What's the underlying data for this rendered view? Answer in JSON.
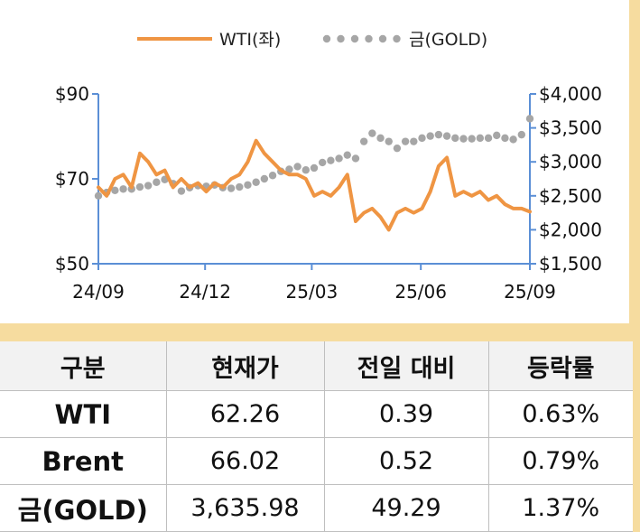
{
  "chart_data": {
    "type": "line",
    "x_tick_labels": [
      "24/09",
      "24/12",
      "25/03",
      "25/06",
      "25/09"
    ],
    "y_left_ticks": [
      "$50",
      "$70",
      "$90"
    ],
    "y_left_lim": [
      50,
      90
    ],
    "y_right_ticks": [
      "$1,500",
      "$2,000",
      "$2,500",
      "$3,000",
      "$3,500",
      "$4,000"
    ],
    "y_right_lim": [
      1500,
      4000
    ],
    "legend_position": "top",
    "series": [
      {
        "name": "WTI(좌)",
        "axis": "left",
        "style": "line",
        "color": "#ef9543",
        "x": [
          "2024-09-02",
          "2024-09-09",
          "2024-09-16",
          "2024-09-23",
          "2024-09-30",
          "2024-10-07",
          "2024-10-14",
          "2024-10-21",
          "2024-10-28",
          "2024-11-04",
          "2024-11-11",
          "2024-11-18",
          "2024-11-25",
          "2024-12-02",
          "2024-12-09",
          "2024-12-16",
          "2024-12-23",
          "2024-12-30",
          "2025-01-06",
          "2025-01-13",
          "2025-01-20",
          "2025-01-27",
          "2025-02-03",
          "2025-02-10",
          "2025-02-17",
          "2025-02-24",
          "2025-03-03",
          "2025-03-10",
          "2025-03-17",
          "2025-03-24",
          "2025-03-31",
          "2025-04-07",
          "2025-04-14",
          "2025-04-21",
          "2025-04-28",
          "2025-05-05",
          "2025-05-12",
          "2025-05-19",
          "2025-05-26",
          "2025-06-02",
          "2025-06-09",
          "2025-06-16",
          "2025-06-23",
          "2025-06-30",
          "2025-07-07",
          "2025-07-14",
          "2025-07-21",
          "2025-07-28",
          "2025-08-04",
          "2025-08-11",
          "2025-08-18",
          "2025-08-25",
          "2025-09-01"
        ],
        "values": [
          68,
          66,
          70,
          71,
          68,
          76,
          74,
          71,
          72,
          68,
          70,
          68,
          69,
          67,
          69,
          68,
          70,
          71,
          74,
          79,
          76,
          74,
          72,
          71,
          71,
          70,
          66,
          67,
          66,
          68,
          71,
          60,
          62,
          63,
          61,
          58,
          62,
          63,
          62,
          63,
          67,
          73,
          75,
          66,
          67,
          66,
          67,
          65,
          66,
          64,
          63,
          63,
          62.26
        ]
      },
      {
        "name": "금(GOLD)",
        "axis": "right",
        "style": "dotted",
        "color": "#a6a6a6",
        "x": [
          "2024-09-02",
          "2024-09-09",
          "2024-09-16",
          "2024-09-23",
          "2024-09-30",
          "2024-10-07",
          "2024-10-14",
          "2024-10-21",
          "2024-10-28",
          "2024-11-04",
          "2024-11-11",
          "2024-11-18",
          "2024-11-25",
          "2024-12-02",
          "2024-12-09",
          "2024-12-16",
          "2024-12-23",
          "2024-12-30",
          "2025-01-06",
          "2025-01-13",
          "2025-01-20",
          "2025-01-27",
          "2025-02-03",
          "2025-02-10",
          "2025-02-17",
          "2025-02-24",
          "2025-03-03",
          "2025-03-10",
          "2025-03-17",
          "2025-03-24",
          "2025-03-31",
          "2025-04-07",
          "2025-04-14",
          "2025-04-21",
          "2025-04-28",
          "2025-05-05",
          "2025-05-12",
          "2025-05-19",
          "2025-05-26",
          "2025-06-02",
          "2025-06-09",
          "2025-06-16",
          "2025-06-23",
          "2025-06-30",
          "2025-07-07",
          "2025-07-14",
          "2025-07-21",
          "2025-07-28",
          "2025-08-04",
          "2025-08-11",
          "2025-08-18",
          "2025-08-25",
          "2025-09-01"
        ],
        "values": [
          2500,
          2550,
          2580,
          2600,
          2600,
          2630,
          2650,
          2700,
          2740,
          2680,
          2570,
          2620,
          2650,
          2640,
          2660,
          2620,
          2610,
          2630,
          2660,
          2700,
          2750,
          2800,
          2860,
          2890,
          2930,
          2880,
          2910,
          2990,
          3020,
          3050,
          3100,
          3050,
          3300,
          3420,
          3350,
          3300,
          3200,
          3300,
          3300,
          3350,
          3380,
          3400,
          3380,
          3350,
          3340,
          3340,
          3350,
          3350,
          3390,
          3350,
          3330,
          3400,
          3635.98
        ]
      }
    ]
  },
  "table": {
    "headers": [
      "구분",
      "현재가",
      "전일 대비",
      "등락률"
    ],
    "rows": [
      [
        "WTI",
        "62.26",
        "0.39",
        "0.63%"
      ],
      [
        "Brent",
        "66.02",
        "0.52",
        "0.79%"
      ],
      [
        "금(GOLD)",
        "3,635.98",
        "49.29",
        "1.37%"
      ]
    ]
  }
}
